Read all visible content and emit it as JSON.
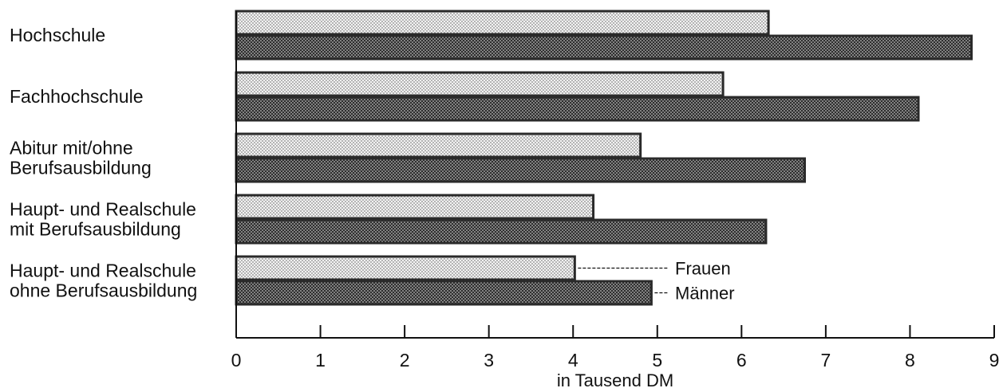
{
  "chart_data": {
    "type": "bar",
    "orientation": "horizontal",
    "categories": [
      [
        "Hochschule"
      ],
      [
        "Fachhochschule"
      ],
      [
        "Abitur mit/ohne",
        "Berufsausbildung"
      ],
      [
        "Haupt- und Realschule",
        "mit Berufsausbildung"
      ],
      [
        "Haupt- und Realschule",
        "ohne Berufsausbildung"
      ]
    ],
    "series": [
      {
        "name": "Frauen",
        "values": [
          6.32,
          5.78,
          4.8,
          4.24,
          4.02
        ],
        "color": "#e6e6e6"
      },
      {
        "name": "Männer",
        "values": [
          8.73,
          8.1,
          6.75,
          6.29,
          4.93
        ],
        "color": "#3a3a3a"
      }
    ],
    "xlabel": "in Tausend DM",
    "xlim": [
      0,
      9
    ],
    "xticks": [
      "0",
      "1",
      "2",
      "3",
      "4",
      "5",
      "6",
      "7",
      "8",
      "9"
    ],
    "grid": false,
    "legend": "inline-right-of-last-bars"
  }
}
